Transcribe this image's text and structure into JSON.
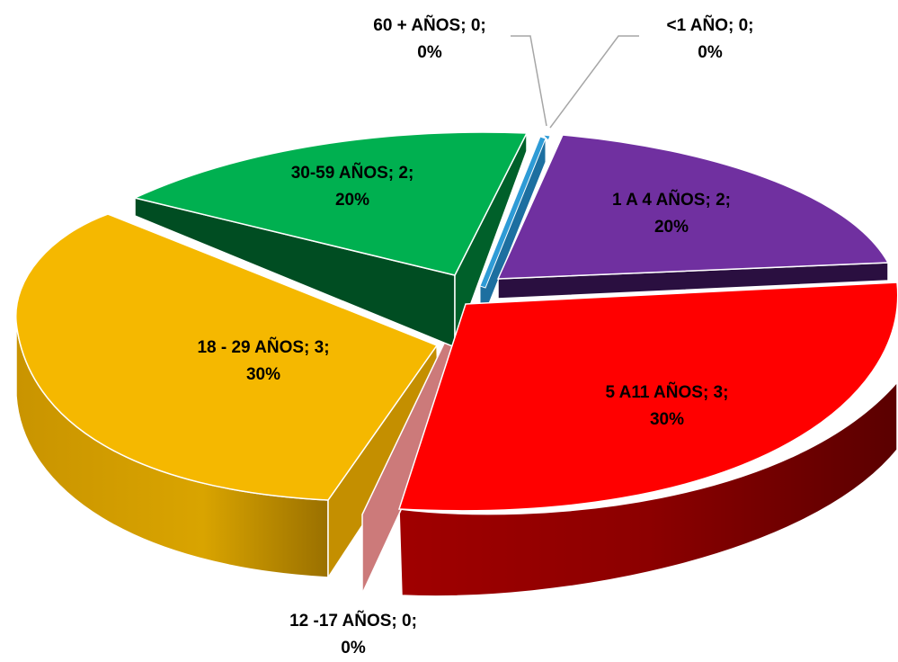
{
  "chart_data": {
    "type": "pie",
    "style": "3d-exploded",
    "slices": [
      {
        "category": "<1 AÑO",
        "value": 0,
        "percent": "0%",
        "color": "#2e9bd6",
        "label_line1": "<1 AÑO; 0;",
        "label_line2": "0%"
      },
      {
        "category": "1 A 4 AÑOS",
        "value": 2,
        "percent": "20%",
        "color": "#7030a0",
        "label_line1": "1 A 4 AÑOS; 2;",
        "label_line2": "20%"
      },
      {
        "category": "5 A11 AÑOS",
        "value": 3,
        "percent": "30%",
        "color": "#ff0000",
        "label_line1": "5 A11 AÑOS; 3;",
        "label_line2": "30%"
      },
      {
        "category": "12 -17 AÑOS",
        "value": 0,
        "percent": "0%",
        "color": "#cc7a7a",
        "label_line1": "12 -17 AÑOS; 0;",
        "label_line2": "0%"
      },
      {
        "category": "18 - 29 AÑOS",
        "value": 3,
        "percent": "30%",
        "color": "#f5b800",
        "label_line1": "18 - 29 AÑOS; 3;",
        "label_line2": "30%"
      },
      {
        "category": "30-59 AÑOS",
        "value": 2,
        "percent": "20%",
        "color": "#00b050",
        "label_line1": "30-59 AÑOS; 2;",
        "label_line2": "20%"
      },
      {
        "category": "60 + AÑOS",
        "value": 0,
        "percent": "0%",
        "color": "#2e9bd6",
        "label_line1": "60 + AÑOS; 0;",
        "label_line2": "0%"
      }
    ],
    "legend": "none"
  }
}
